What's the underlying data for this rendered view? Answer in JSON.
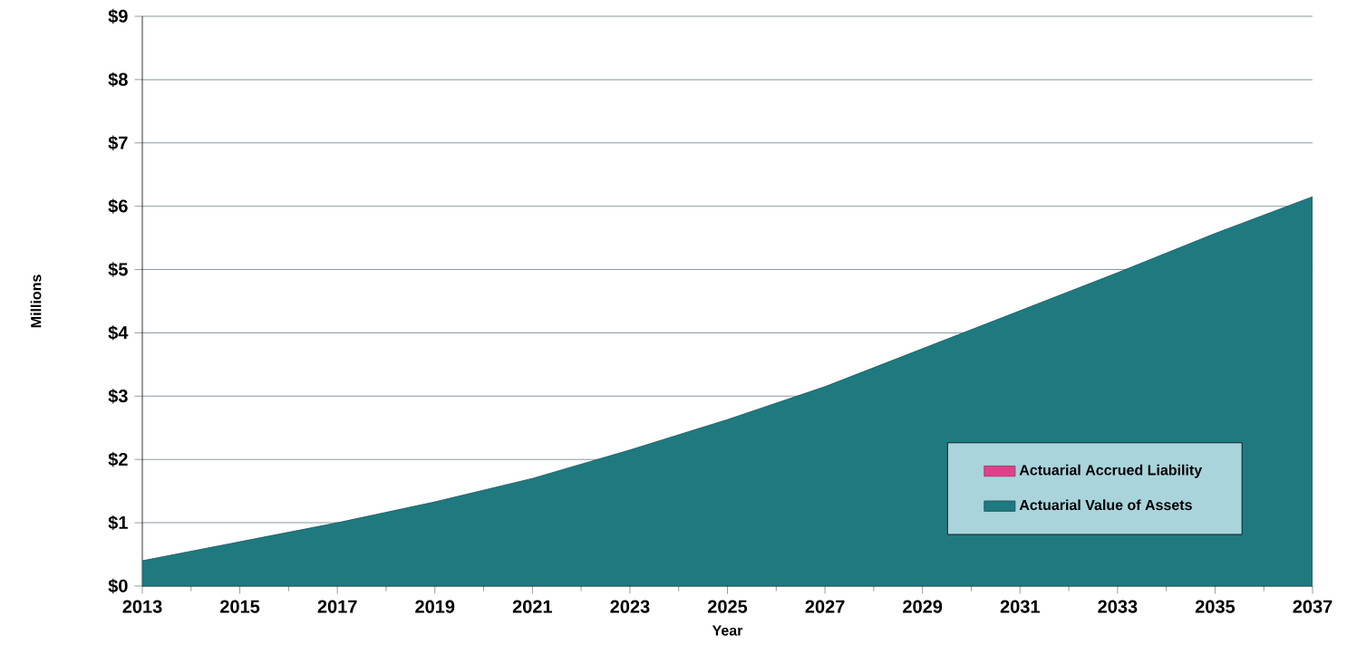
{
  "chart_data": {
    "type": "area",
    "xlabel": "Year",
    "ylabel": "Millions",
    "x": [
      2013,
      2015,
      2017,
      2019,
      2021,
      2023,
      2025,
      2027,
      2029,
      2031,
      2033,
      2035,
      2037
    ],
    "series": [
      {
        "name": "Actuarial Accrued Liability",
        "color": "#e0408a",
        "values": [
          null,
          null,
          null,
          null,
          null,
          null,
          null,
          null,
          null,
          null,
          null,
          null,
          null
        ]
      },
      {
        "name": "Actuarial Value of Assets",
        "color": "#1f7a80",
        "values": [
          0.4,
          0.7,
          1.0,
          1.33,
          1.7,
          2.15,
          2.63,
          3.15,
          3.75,
          4.35,
          4.95,
          5.57,
          6.15
        ]
      }
    ],
    "xlim": [
      2013,
      2037
    ],
    "xticks": [
      2013,
      2015,
      2017,
      2019,
      2021,
      2023,
      2025,
      2027,
      2029,
      2031,
      2033,
      2035,
      2037
    ],
    "ylim": [
      0,
      9
    ],
    "yticks": [
      {
        "value": 0,
        "label": "$0"
      },
      {
        "value": 1,
        "label": "$1"
      },
      {
        "value": 2,
        "label": "$2"
      },
      {
        "value": 3,
        "label": "$3"
      },
      {
        "value": 4,
        "label": "$4"
      },
      {
        "value": 5,
        "label": "$5"
      },
      {
        "value": 6,
        "label": "$6"
      },
      {
        "value": 7,
        "label": "$7"
      },
      {
        "value": 8,
        "label": "$8"
      },
      {
        "value": 9,
        "label": "$9"
      }
    ],
    "grid": "y",
    "legend": "bottom right"
  }
}
